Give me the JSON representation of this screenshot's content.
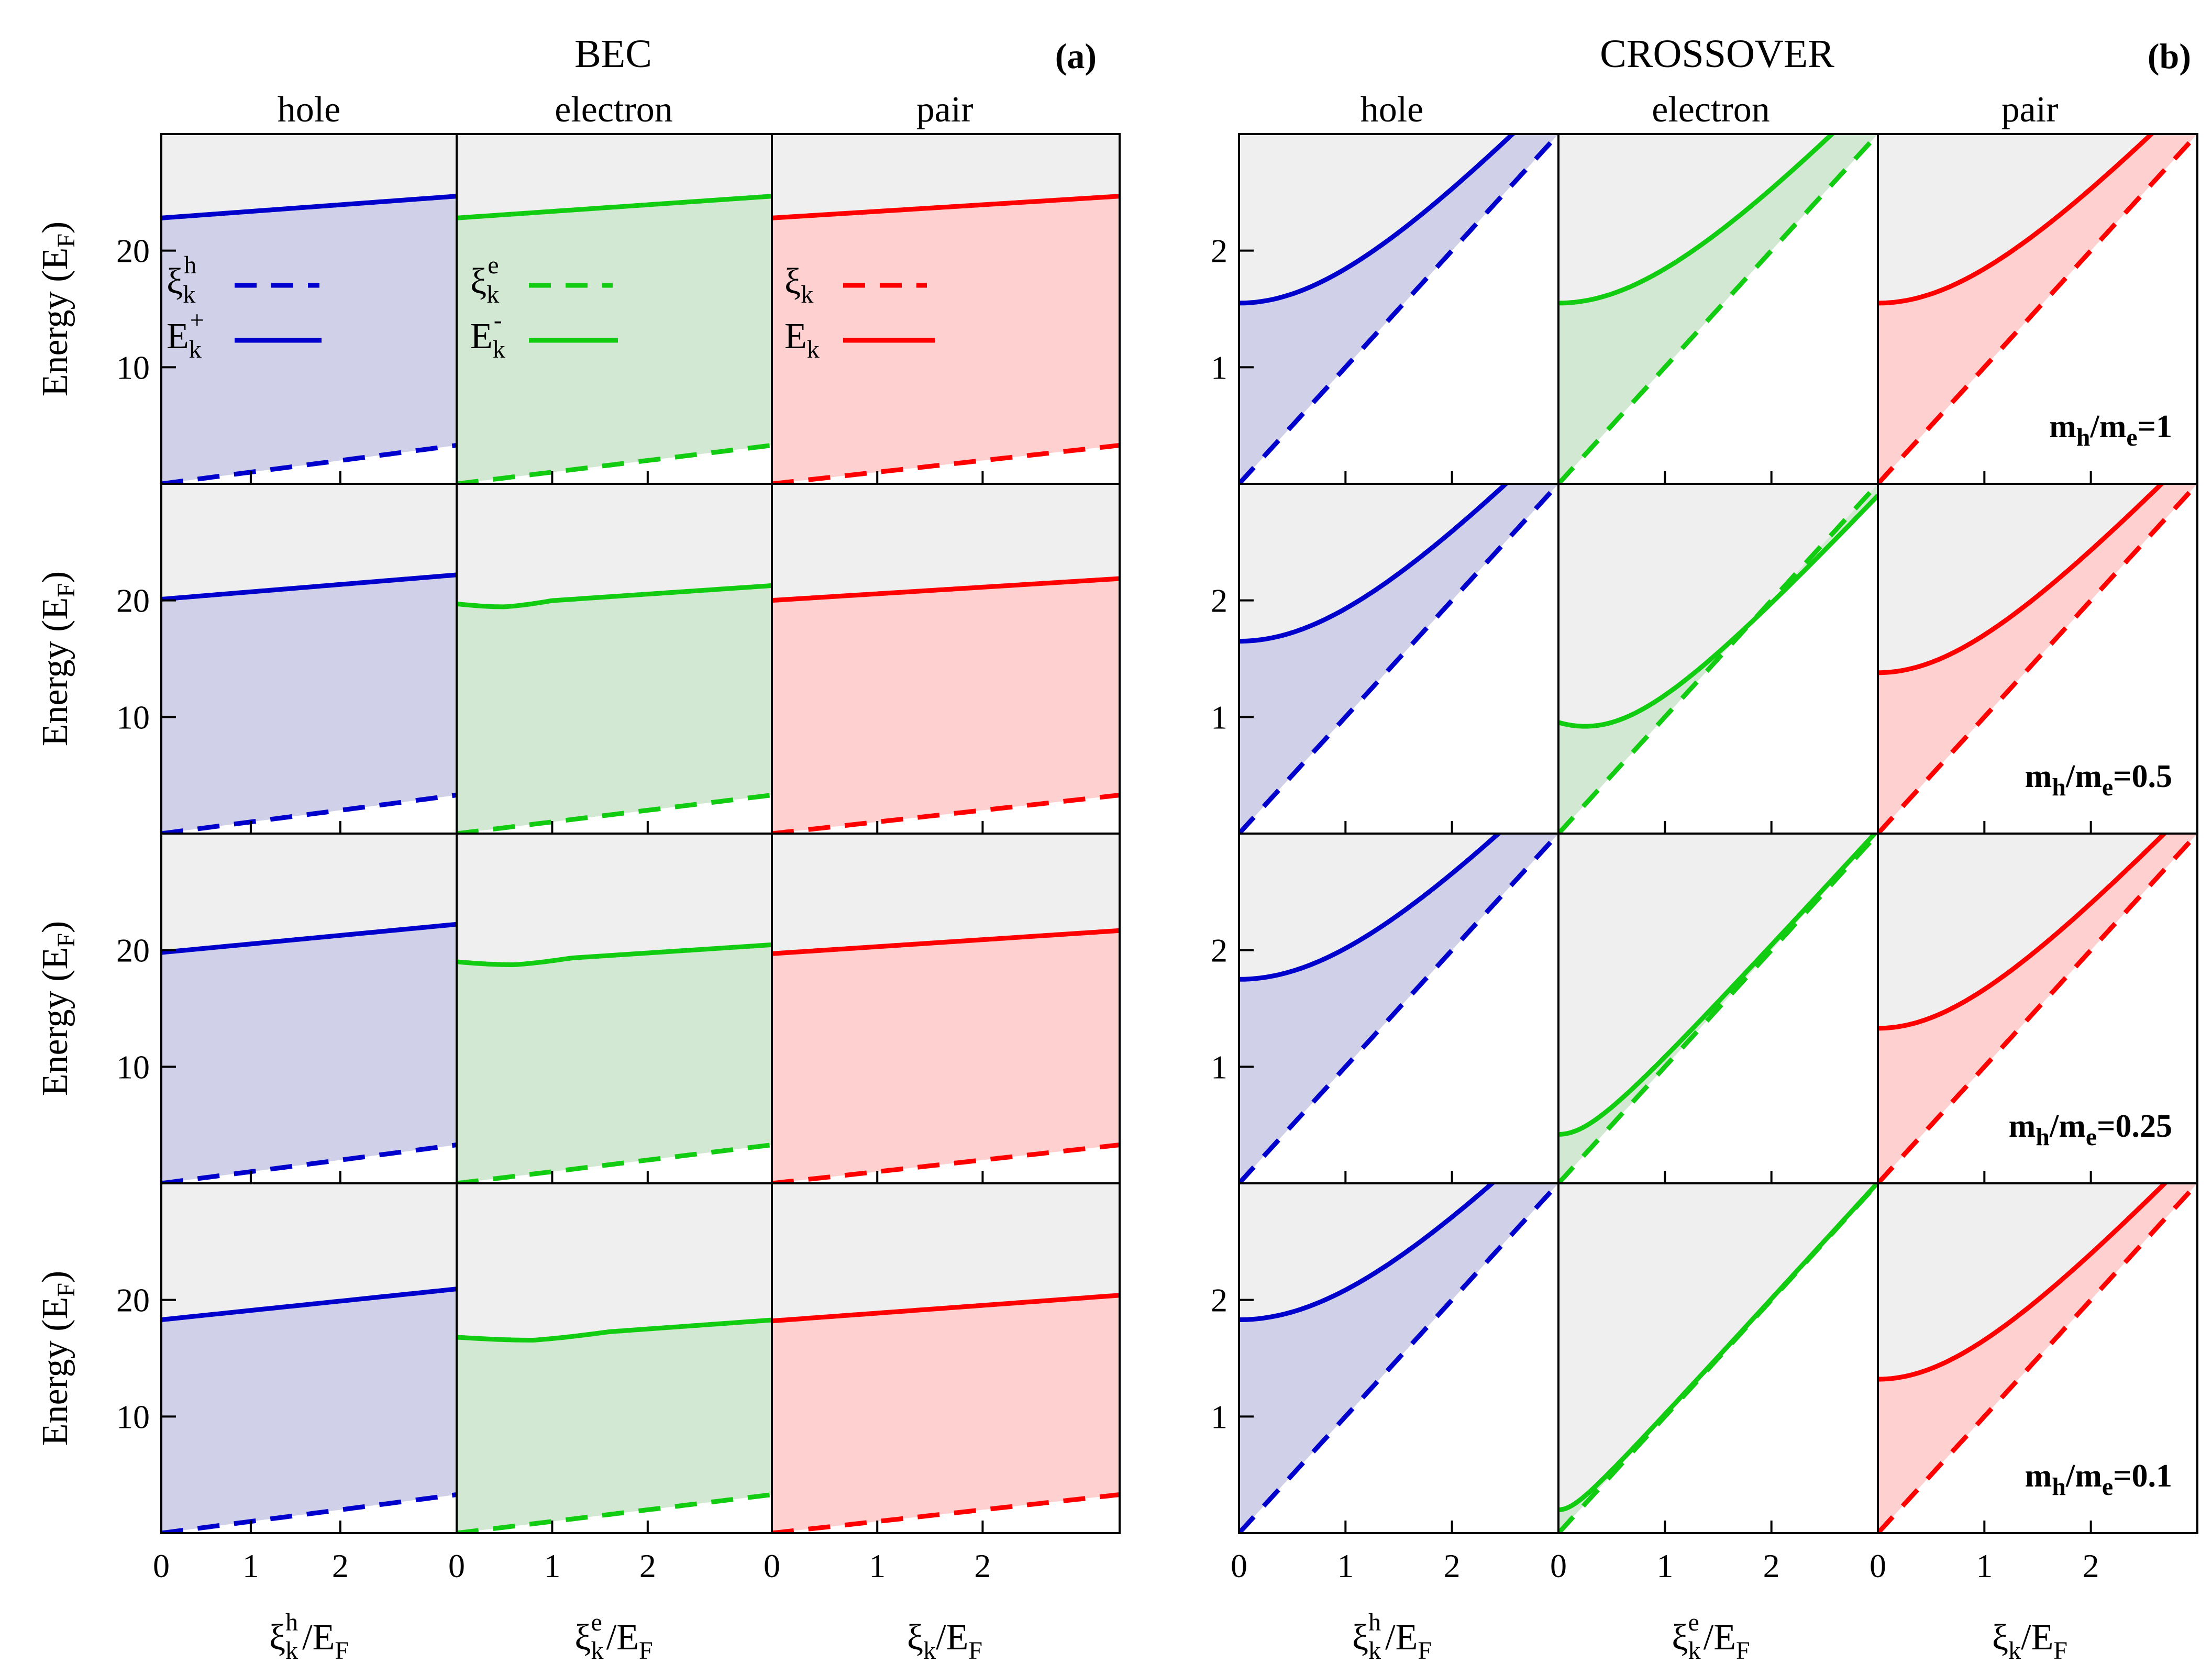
{
  "figure": {
    "group_a": {
      "title": "BEC",
      "tag": "(a)"
    },
    "group_b": {
      "title": "CROSSOVER",
      "tag": "(b)"
    },
    "columns": [
      "hole",
      "electron",
      "pair"
    ],
    "ylabel": {
      "main": "Energy (E",
      "sub": "F",
      "close": ")"
    },
    "xlabels": [
      {
        "xi": "ξ",
        "sub": "k",
        "sup": "h",
        "rest": "/E",
        "rest_sub": "F"
      },
      {
        "xi": "ξ",
        "sub": "k",
        "sup": "e",
        "rest": "/E",
        "rest_sub": "F"
      },
      {
        "xi": "ξ",
        "sub": "k",
        "sup": "",
        "rest": "/E",
        "rest_sub": "F"
      }
    ],
    "legend": [
      {
        "dashed": {
          "base": "ξ",
          "sub": "k",
          "sup": "h"
        },
        "solid": {
          "base": "E",
          "sub": "k",
          "sup": "+"
        }
      },
      {
        "dashed": {
          "base": "ξ",
          "sub": "k",
          "sup": "e"
        },
        "solid": {
          "base": "E",
          "sub": "k",
          "sup": "-"
        }
      },
      {
        "dashed": {
          "base": "ξ",
          "sub": "k",
          "sup": ""
        },
        "solid": {
          "base": "E",
          "sub": "k",
          "sup": ""
        }
      }
    ],
    "ratio_labels": [
      {
        "m": "m",
        "h": "h",
        "slash": "/m",
        "e": "e",
        "val": "=1"
      },
      {
        "m": "m",
        "h": "h",
        "slash": "/m",
        "e": "e",
        "val": "=0.5"
      },
      {
        "m": "m",
        "h": "h",
        "slash": "/m",
        "e": "e",
        "val": "=0.25"
      },
      {
        "m": "m",
        "h": "h",
        "slash": "/m",
        "e": "e",
        "val": "=0.1"
      }
    ],
    "colors": {
      "hole": "#0000cc",
      "electron": "#11cc11",
      "pair": "#ff0000",
      "hole_fill": "#d0d0e8",
      "electron_fill": "#d2e8d2",
      "pair_fill": "#ffd0d0",
      "gap_fill": "#efefef"
    }
  },
  "chart_data": [
    {
      "type": "line",
      "group": "BEC",
      "xlim": [
        0,
        3.3
      ],
      "ylim": [
        0,
        30
      ],
      "xticks": [
        0,
        1,
        2
      ],
      "yticks": [
        10,
        20
      ],
      "note": "rows are m_h/m_e = 1, 0.5, 0.25, 0.1; xi_k = dashed line, E_k = solid line",
      "rows": [
        {
          "ratio": "1",
          "hole": {
            "xi_start": 0,
            "xi_end": 3.0,
            "E_start": 22.8,
            "E_end": 24.5,
            "E_min_x": 0
          },
          "electron": {
            "xi_start": 0,
            "xi_end": 3.0,
            "E_start": 22.8,
            "E_end": 24.5,
            "E_min_x": 0
          },
          "pair": {
            "xi_start": 0,
            "xi_end": 3.0,
            "E_start": 22.8,
            "E_end": 24.5,
            "E_min_x": 0
          }
        },
        {
          "ratio": "0.5",
          "hole": {
            "xi_start": 0,
            "xi_end": 3.0,
            "E_start": 20.1,
            "E_end": 22.0,
            "E_min_x": 0
          },
          "electron": {
            "xi_start": 0,
            "xi_end": 3.0,
            "E_start": 19.7,
            "E_end": 21.1,
            "E_min_x": 0.5
          },
          "pair": {
            "xi_start": 0,
            "xi_end": 3.0,
            "E_start": 20.0,
            "E_end": 21.7,
            "E_min_x": 0
          }
        },
        {
          "ratio": "0.25",
          "hole": {
            "xi_start": 0,
            "xi_end": 3.0,
            "E_start": 19.8,
            "E_end": 22.0,
            "E_min_x": 0
          },
          "electron": {
            "xi_start": 0,
            "xi_end": 3.0,
            "E_start": 19.0,
            "E_end": 20.3,
            "E_min_x": 0.6
          },
          "pair": {
            "xi_start": 0,
            "xi_end": 3.0,
            "E_start": 19.7,
            "E_end": 21.5,
            "E_min_x": 0
          }
        },
        {
          "ratio": "0.1",
          "hole": {
            "xi_start": 0,
            "xi_end": 3.0,
            "E_start": 18.3,
            "E_end": 20.7,
            "E_min_x": 0
          },
          "electron": {
            "xi_start": 0,
            "xi_end": 3.0,
            "E_start": 16.8,
            "E_end": 18.1,
            "E_min_x": 0.8
          },
          "pair": {
            "xi_start": 0,
            "xi_end": 3.0,
            "E_start": 18.2,
            "E_end": 20.2,
            "E_min_x": 0
          }
        }
      ]
    },
    {
      "type": "line",
      "group": "CROSSOVER",
      "xlim": [
        0,
        3.0
      ],
      "ylim": [
        0,
        3.0
      ],
      "xticks": [
        0,
        1,
        2
      ],
      "yticks": [
        1,
        2
      ],
      "note": "xi_k = x (dashed); E_k = sqrt((x - mu)^2 + Delta^2) (solid); energy gap shaded between curves",
      "rows": [
        {
          "ratio": "1",
          "hole": {
            "gap": 1.55,
            "mu": 0.0
          },
          "electron": {
            "gap": 1.55,
            "mu": 0.0
          },
          "pair": {
            "gap": 1.55,
            "mu": 0.0
          }
        },
        {
          "ratio": "0.5",
          "hole": {
            "gap": 1.65,
            "mu": 0.0
          },
          "electron": {
            "gap": 0.92,
            "mu": 0.25
          },
          "pair": {
            "gap": 1.38,
            "mu": 0.0
          }
        },
        {
          "ratio": "0.25",
          "hole": {
            "gap": 1.75,
            "mu": 0.0
          },
          "electron": {
            "gap": 0.42,
            "mu": 0.0
          },
          "pair": {
            "gap": 1.33,
            "mu": 0.0
          }
        },
        {
          "ratio": "0.1",
          "hole": {
            "gap": 1.83,
            "mu": 0.0
          },
          "electron": {
            "gap": 0.2,
            "mu": 0.0
          },
          "pair": {
            "gap": 1.32,
            "mu": 0.0
          }
        }
      ]
    }
  ]
}
